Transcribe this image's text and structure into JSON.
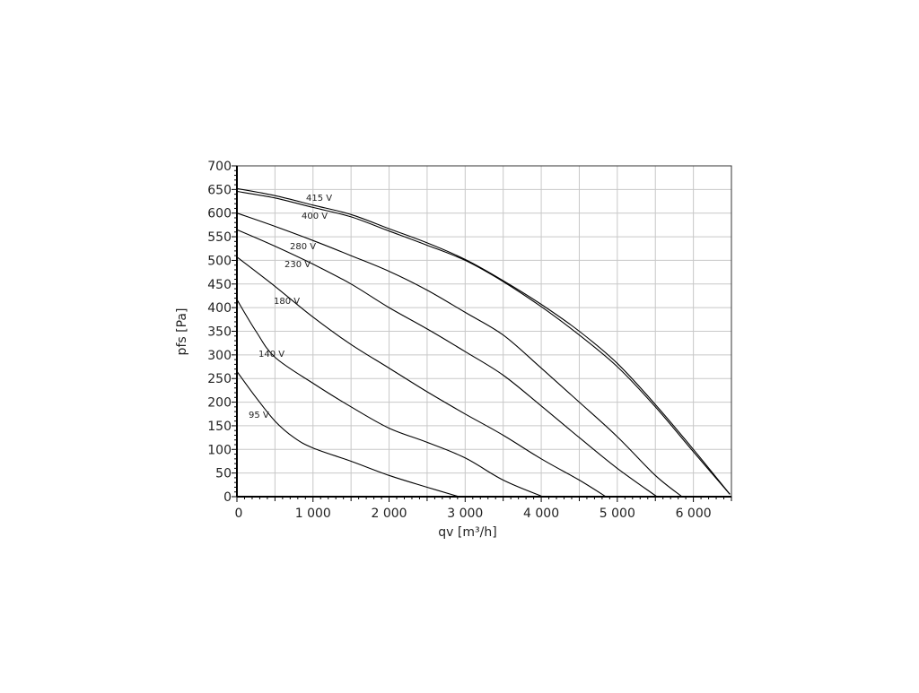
{
  "chart_data": {
    "type": "line",
    "xlabel": "qv [m³/h]",
    "ylabel": "pfs [Pa]",
    "xlim": [
      0,
      6500
    ],
    "ylim": [
      0,
      700
    ],
    "grid": true,
    "x_ticks": [
      0,
      1000,
      2000,
      3000,
      4000,
      5000,
      6000
    ],
    "x_tick_labels": [
      "0",
      "1 000",
      "2 000",
      "3 000",
      "4 000",
      "5 000",
      "6 000"
    ],
    "y_ticks": [
      0,
      50,
      100,
      150,
      200,
      250,
      300,
      350,
      400,
      450,
      500,
      550,
      600,
      650,
      700
    ],
    "y_tick_labels": [
      "0",
      "50",
      "100",
      "150",
      "200",
      "250",
      "300",
      "350",
      "400",
      "450",
      "500",
      "550",
      "600",
      "650",
      "700"
    ],
    "series": [
      {
        "name": "415 V",
        "points": [
          [
            0,
            652
          ],
          [
            500,
            637
          ],
          [
            1000,
            617
          ],
          [
            1500,
            597
          ],
          [
            2000,
            567
          ],
          [
            2500,
            537
          ],
          [
            3000,
            502
          ],
          [
            3500,
            457
          ],
          [
            4000,
            407
          ],
          [
            4500,
            350
          ],
          [
            5000,
            282
          ],
          [
            5500,
            195
          ],
          [
            6000,
            100
          ],
          [
            6480,
            5
          ]
        ]
      },
      {
        "name": "400 V",
        "points": [
          [
            0,
            646
          ],
          [
            500,
            632
          ],
          [
            1000,
            612
          ],
          [
            1500,
            592
          ],
          [
            2000,
            562
          ],
          [
            2500,
            532
          ],
          [
            3000,
            500
          ],
          [
            3500,
            455
          ],
          [
            4000,
            402
          ],
          [
            4500,
            342
          ],
          [
            5000,
            275
          ],
          [
            5500,
            190
          ],
          [
            6000,
            95
          ],
          [
            6480,
            5
          ]
        ]
      },
      {
        "name": "280 V",
        "points": [
          [
            0,
            600
          ],
          [
            500,
            572
          ],
          [
            1000,
            542
          ],
          [
            1500,
            510
          ],
          [
            2000,
            477
          ],
          [
            2500,
            437
          ],
          [
            3000,
            390
          ],
          [
            3500,
            342
          ],
          [
            4000,
            272
          ],
          [
            4500,
            200
          ],
          [
            5000,
            127
          ],
          [
            5500,
            45
          ],
          [
            5850,
            0
          ]
        ]
      },
      {
        "name": "230 V",
        "points": [
          [
            0,
            565
          ],
          [
            500,
            530
          ],
          [
            1000,
            492
          ],
          [
            1500,
            450
          ],
          [
            2000,
            400
          ],
          [
            2500,
            355
          ],
          [
            3000,
            307
          ],
          [
            3500,
            257
          ],
          [
            4000,
            192
          ],
          [
            4500,
            125
          ],
          [
            5000,
            60
          ],
          [
            5520,
            0
          ]
        ]
      },
      {
        "name": "180 V",
        "points": [
          [
            0,
            507
          ],
          [
            500,
            445
          ],
          [
            1000,
            380
          ],
          [
            1500,
            322
          ],
          [
            2000,
            272
          ],
          [
            2500,
            222
          ],
          [
            3000,
            175
          ],
          [
            3500,
            130
          ],
          [
            4000,
            80
          ],
          [
            4500,
            35
          ],
          [
            4850,
            0
          ]
        ]
      },
      {
        "name": "140 V",
        "points": [
          [
            0,
            417
          ],
          [
            250,
            350
          ],
          [
            500,
            295
          ],
          [
            1000,
            240
          ],
          [
            1500,
            190
          ],
          [
            2000,
            145
          ],
          [
            2500,
            115
          ],
          [
            3000,
            82
          ],
          [
            3500,
            35
          ],
          [
            4020,
            0
          ]
        ]
      },
      {
        "name": "95 V",
        "points": [
          [
            0,
            265
          ],
          [
            250,
            210
          ],
          [
            500,
            160
          ],
          [
            750,
            125
          ],
          [
            1000,
            103
          ],
          [
            1500,
            75
          ],
          [
            2000,
            45
          ],
          [
            2500,
            20
          ],
          [
            2920,
            0
          ]
        ]
      }
    ]
  }
}
